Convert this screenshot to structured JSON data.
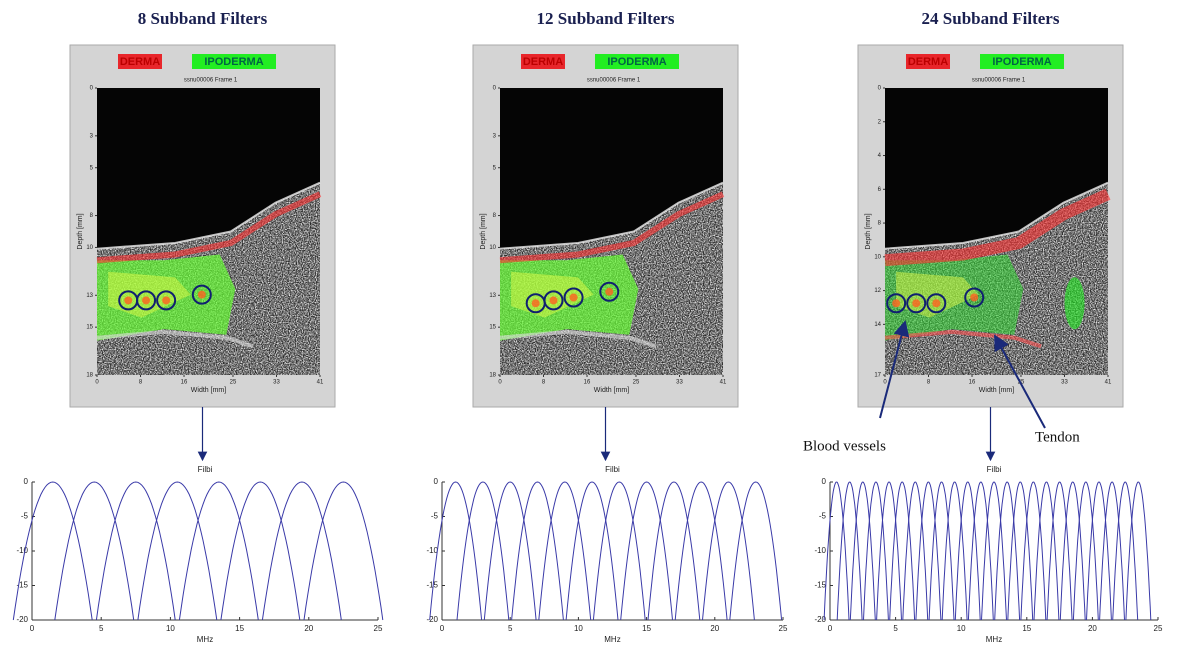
{
  "panels": [
    {
      "title": "8 Subband Filters",
      "image": {
        "legend": [
          "DERMA",
          "IPODERMA"
        ],
        "frame_title": "ssnu00006 Frame 1",
        "ylabel": "Depth  [mm]",
        "xlabel": "Width  [mm]",
        "xlim": [
          0,
          41
        ],
        "xticks": [
          0,
          8,
          16,
          25,
          33,
          41
        ],
        "ylim": [
          0,
          18
        ],
        "yticks": [
          0,
          3,
          5,
          8,
          10,
          13,
          15,
          18
        ]
      }
    },
    {
      "title": "12  Subband Filters",
      "image": {
        "legend": [
          "DERMA",
          "IPODERMA"
        ],
        "frame_title": "ssnu00006 Frame 1",
        "ylabel": "Depth  [mm]",
        "xlabel": "Width  [mm]",
        "xlim": [
          0,
          41
        ],
        "xticks": [
          0,
          8,
          16,
          25,
          33,
          41
        ],
        "ylim": [
          0,
          18
        ],
        "yticks": [
          0,
          3,
          5,
          8,
          10,
          13,
          15,
          18
        ]
      }
    },
    {
      "title": "24  Subband Filters",
      "image": {
        "legend": [
          "DERMA",
          "IPODERMA"
        ],
        "frame_title": "ssnu00006 Frame 1",
        "ylabel": "Depth  [mm]",
        "xlabel": "Width  [mm]",
        "xlim": [
          0,
          41
        ],
        "xticks": [
          0,
          8,
          16,
          25,
          33,
          41
        ],
        "ylim": [
          0,
          17
        ],
        "yticks": [
          0,
          2,
          4,
          6,
          8,
          10,
          12,
          14,
          17
        ]
      }
    }
  ],
  "annotations": [
    "Blood vessels",
    "Tendon"
  ],
  "chart_data": [
    {
      "type": "line",
      "title": "Filbi",
      "xlabel": "MHz",
      "color": "#3a3aa8",
      "xlim": [
        0,
        25
      ],
      "xticks": [
        0,
        5,
        10,
        15,
        20,
        25
      ],
      "ylim": [
        -20,
        0
      ],
      "yticks": [
        0,
        -5,
        -10,
        -15,
        -20
      ],
      "filter_centers": [
        1.5,
        4.5,
        7.5,
        10.5,
        13.5,
        16.5,
        19.5,
        22.5
      ]
    },
    {
      "type": "line",
      "title": "Filbi",
      "xlabel": "MHz",
      "color": "#3a3aa8",
      "xlim": [
        0,
        25
      ],
      "xticks": [
        0,
        5,
        10,
        15,
        20,
        25
      ],
      "ylim": [
        -20,
        0
      ],
      "yticks": [
        0,
        -5,
        -10,
        -15,
        -20
      ],
      "filter_centers": [
        1,
        3,
        5,
        7,
        9,
        11,
        13,
        15,
        17,
        19,
        21,
        23
      ]
    },
    {
      "type": "line",
      "title": "Filbi",
      "xlabel": "MHz",
      "color": "#3a3aa8",
      "xlim": [
        0,
        25
      ],
      "xticks": [
        0,
        5,
        10,
        15,
        20,
        25
      ],
      "ylim": [
        -20,
        0
      ],
      "yticks": [
        0,
        -5,
        -10,
        -15,
        -20
      ],
      "filter_centers": [
        0.5,
        1.5,
        2.5,
        3.5,
        4.5,
        5.5,
        6.5,
        7.5,
        8.5,
        9.5,
        10.5,
        11.5,
        12.5,
        13.5,
        14.5,
        15.5,
        16.5,
        17.5,
        18.5,
        19.5,
        20.5,
        21.5,
        22.5,
        23.5
      ]
    }
  ]
}
